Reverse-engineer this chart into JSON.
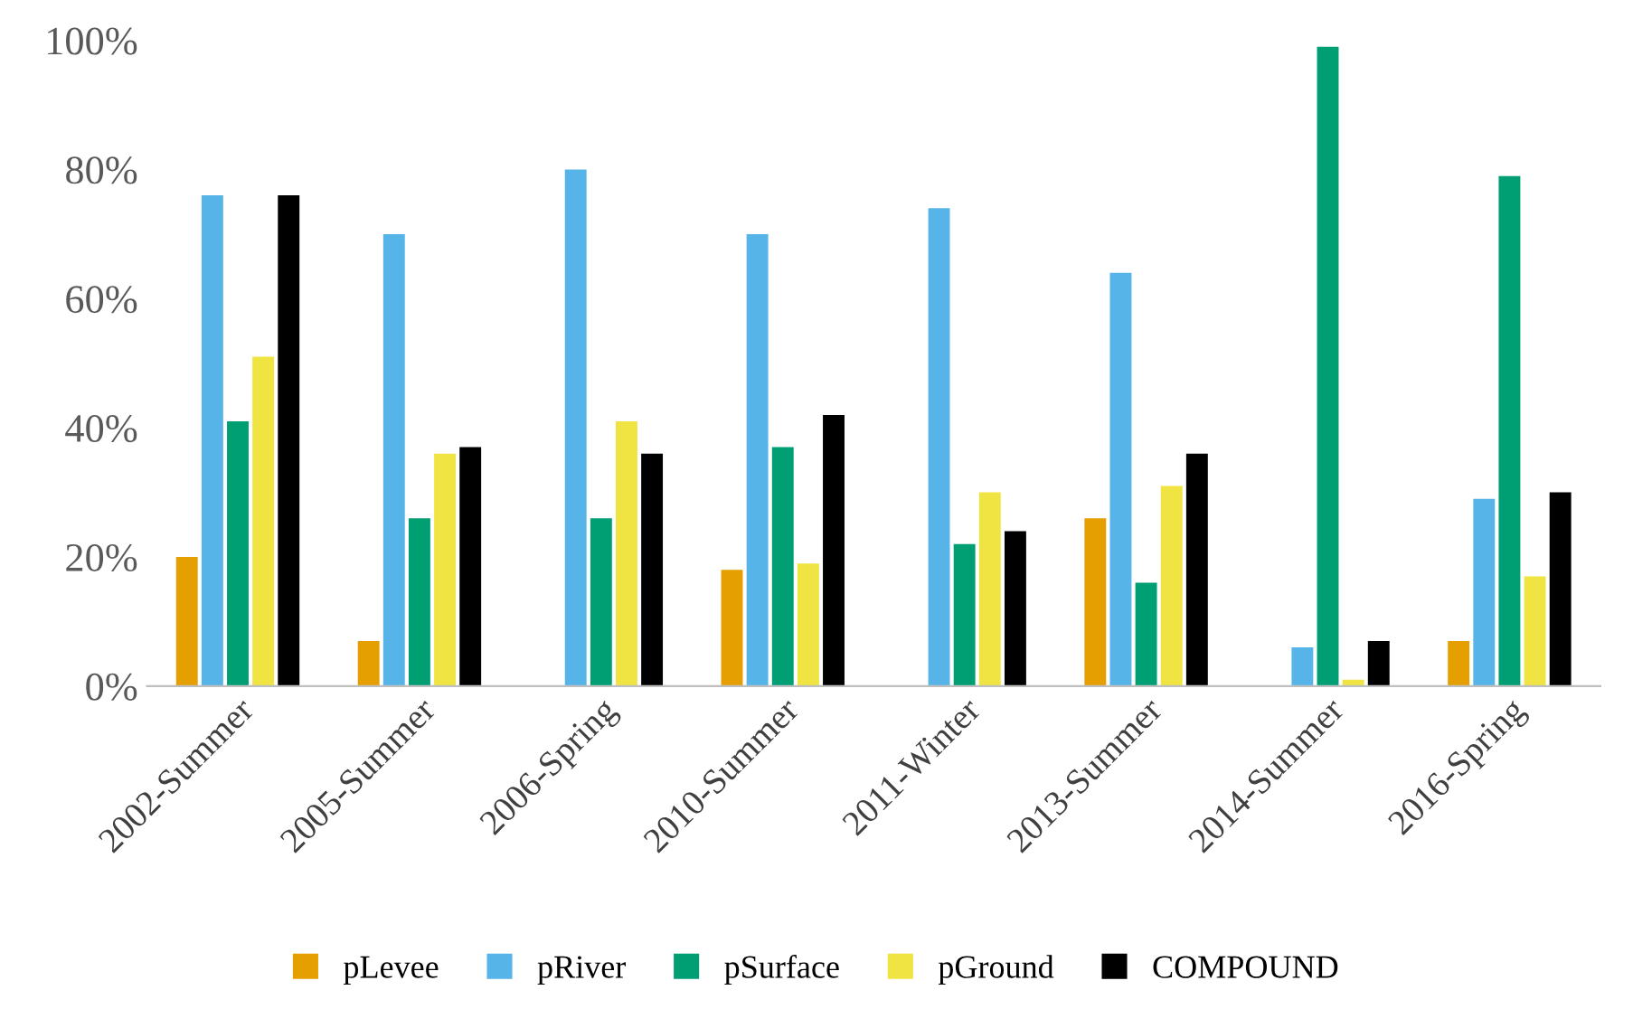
{
  "chart_data": {
    "type": "bar",
    "categories": [
      "2002-Summer",
      "2005-Summer",
      "2006-Spring",
      "2010-Summer",
      "2011-Winter",
      "2013-Summer",
      "2014-Summer",
      "2016-Spring"
    ],
    "series": [
      {
        "name": "pLevee",
        "color": "#e69f00",
        "values": [
          20,
          7,
          0,
          18,
          0,
          26,
          0,
          7
        ]
      },
      {
        "name": "pRiver",
        "color": "#56b4e9",
        "values": [
          76,
          70,
          80,
          70,
          74,
          64,
          6,
          29
        ]
      },
      {
        "name": "pSurface",
        "color": "#009e73",
        "values": [
          41,
          26,
          26,
          37,
          22,
          16,
          99,
          79
        ]
      },
      {
        "name": "pGround",
        "color": "#f0e442",
        "values": [
          51,
          36,
          41,
          19,
          30,
          31,
          1,
          17
        ]
      },
      {
        "name": "COMPOUND",
        "color": "#000000",
        "values": [
          76,
          37,
          36,
          42,
          24,
          36,
          7,
          30
        ]
      }
    ],
    "ylim": [
      0,
      100
    ],
    "yticks": [
      {
        "value": 0,
        "label": "0%"
      },
      {
        "value": 20,
        "label": "20%"
      },
      {
        "value": 40,
        "label": "40%"
      },
      {
        "value": 60,
        "label": "60%"
      },
      {
        "value": 80,
        "label": "80%"
      },
      {
        "value": 100,
        "label": "100%"
      }
    ],
    "grid": false,
    "legend": "bottom"
  }
}
